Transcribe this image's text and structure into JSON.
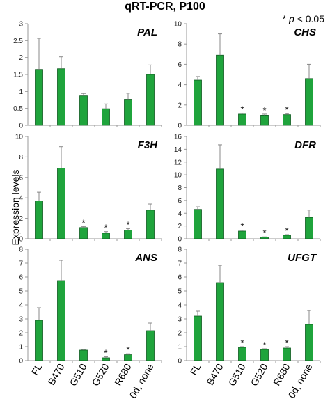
{
  "figure": {
    "title": "qRT-PCR, P100",
    "significance_note_prefix": "* ",
    "significance_note_p": "p",
    "significance_note_suffix": " < 0.05",
    "ylabel": "Expression levels",
    "bar_color": "#1fa43c",
    "bar_edge_color": "#0e5a20",
    "axis_color": "#999999",
    "error_bar_color": "#888888"
  },
  "chart_data": [
    {
      "type": "bar",
      "title": "PAL",
      "categories": [
        "FL",
        "B470",
        "G510",
        "G520",
        "R680",
        "0d, none"
      ],
      "values": [
        1.65,
        1.67,
        0.87,
        0.49,
        0.77,
        1.5
      ],
      "errors": [
        0.92,
        0.35,
        0.07,
        0.14,
        0.18,
        0.28
      ],
      "significant": [
        false,
        false,
        false,
        false,
        false,
        false
      ],
      "ylim": [
        0,
        3
      ],
      "yticks": [
        "0",
        "0.5",
        "1",
        "1.5",
        "2",
        "2.5",
        "3"
      ]
    },
    {
      "type": "bar",
      "title": "CHS",
      "categories": [
        "FL",
        "B470",
        "G510",
        "G520",
        "R680",
        "0d, none"
      ],
      "values": [
        4.45,
        6.9,
        1.1,
        1.0,
        1.05,
        4.6
      ],
      "errors": [
        0.35,
        2.1,
        0.1,
        0.1,
        0.1,
        1.4
      ],
      "significant": [
        false,
        false,
        true,
        true,
        true,
        false
      ],
      "ylim": [
        0,
        10
      ],
      "yticks": [
        "0",
        "2",
        "4",
        "6",
        "8",
        "10"
      ]
    },
    {
      "type": "bar",
      "title": "F3H",
      "categories": [
        "FL",
        "B470",
        "G510",
        "G520",
        "R680",
        "0d, none"
      ],
      "values": [
        3.7,
        6.9,
        1.1,
        0.55,
        0.85,
        2.8
      ],
      "errors": [
        0.85,
        2.1,
        0.1,
        0.15,
        0.15,
        0.6
      ],
      "significant": [
        false,
        false,
        true,
        true,
        true,
        false
      ],
      "ylim": [
        0,
        10
      ],
      "yticks": [
        "0",
        "2",
        "4",
        "6",
        "8",
        "10"
      ]
    },
    {
      "type": "bar",
      "title": "DFR",
      "categories": [
        "FL",
        "B470",
        "G510",
        "G520",
        "R680",
        "0d, none"
      ],
      "values": [
        4.6,
        10.9,
        1.2,
        0.25,
        0.55,
        3.35
      ],
      "errors": [
        0.4,
        3.8,
        0.15,
        0.05,
        0.1,
        1.15
      ],
      "significant": [
        false,
        false,
        true,
        true,
        true,
        false
      ],
      "ylim": [
        0,
        16
      ],
      "yticks": [
        "0",
        "2",
        "4",
        "6",
        "8",
        "10",
        "12",
        "14",
        "16"
      ]
    },
    {
      "type": "bar",
      "title": "ANS",
      "categories": [
        "FL",
        "B470",
        "G510",
        "G520",
        "R680",
        "0d, none"
      ],
      "values": [
        2.9,
        5.75,
        0.75,
        0.2,
        0.42,
        2.15
      ],
      "errors": [
        0.9,
        1.45,
        0.05,
        0.07,
        0.07,
        0.55
      ],
      "significant": [
        false,
        false,
        false,
        true,
        true,
        false
      ],
      "ylim": [
        0,
        8
      ],
      "yticks": [
        "0",
        "1",
        "2",
        "3",
        "4",
        "5",
        "6",
        "7",
        "8"
      ]
    },
    {
      "type": "bar",
      "title": "UFGT",
      "categories": [
        "FL",
        "B470",
        "G510",
        "G520",
        "R680",
        "0d, none"
      ],
      "values": [
        3.2,
        5.6,
        0.95,
        0.8,
        0.9,
        2.6
      ],
      "errors": [
        0.35,
        1.25,
        0.05,
        0.05,
        0.1,
        1.0
      ],
      "significant": [
        false,
        false,
        true,
        true,
        true,
        false
      ],
      "ylim": [
        0,
        8
      ],
      "yticks": [
        "0",
        "1",
        "2",
        "3",
        "4",
        "5",
        "6",
        "7",
        "8"
      ]
    }
  ]
}
